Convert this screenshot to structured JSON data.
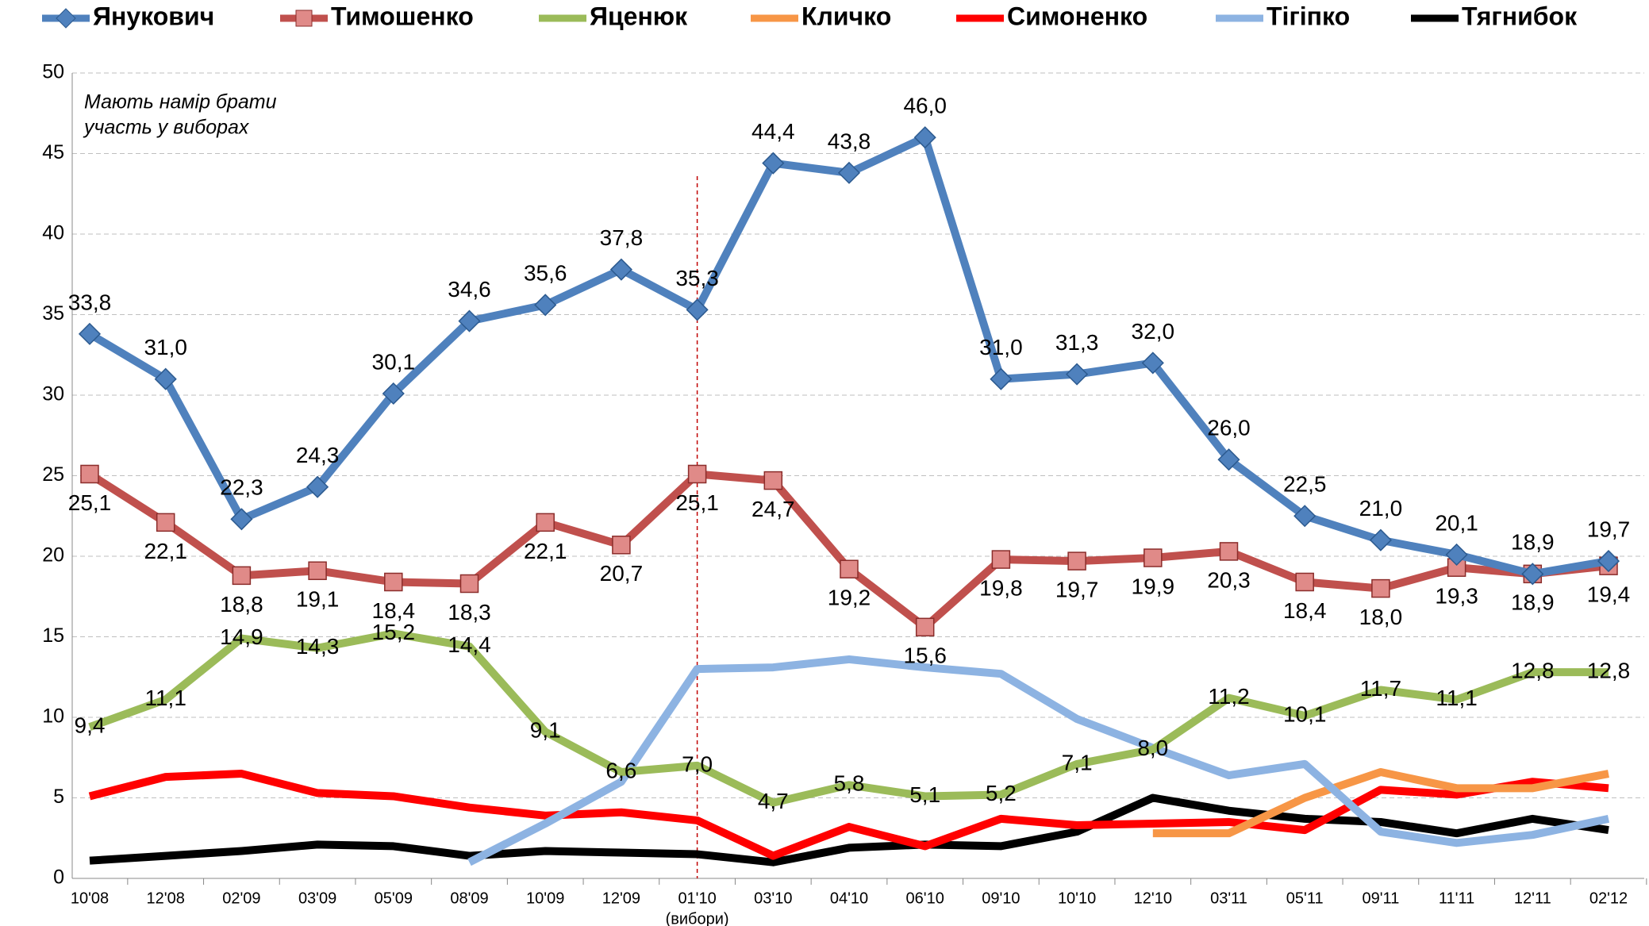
{
  "chart_data": {
    "type": "line",
    "annotation": [
      "Мають намір брати",
      "участь у виборах"
    ],
    "categories": [
      "10'08",
      "12'08",
      "02'09",
      "03'09",
      "05'09",
      "08'09",
      "10'09",
      "12'09",
      "01'10",
      "03'10",
      "04'10",
      "06'10",
      "09'10",
      "10'10",
      "12'10",
      "03'11",
      "05'11",
      "09'11",
      "11'11",
      "12'11",
      "02'12"
    ],
    "category_note": {
      "index": 8,
      "label": "(вибори)"
    },
    "ylim": [
      0,
      50
    ],
    "yticks": [
      0,
      5,
      10,
      15,
      20,
      25,
      30,
      35,
      40,
      45,
      50
    ],
    "grid": true,
    "series": [
      {
        "name": "Янукович",
        "color": "#4f81bd",
        "marker": "diamond",
        "values": [
          33.8,
          31.0,
          22.3,
          24.3,
          30.1,
          34.6,
          35.6,
          37.8,
          35.3,
          44.4,
          43.8,
          46.0,
          31.0,
          31.3,
          32.0,
          26.0,
          22.5,
          21.0,
          20.1,
          18.9,
          19.7
        ],
        "value_labels": [
          "33,8",
          "31,0",
          "22,3",
          "24,3",
          "30,1",
          "34,6",
          "35,6",
          "37,8",
          "35,3",
          "44,4",
          "43,8",
          "46,0",
          "31,0",
          "31,3",
          "32,0",
          "26,0",
          "22,5",
          "21,0",
          "20,1",
          "18,9",
          "19,7"
        ]
      },
      {
        "name": "Тимошенко",
        "color": "#c0504d",
        "marker": "square",
        "values": [
          25.1,
          22.1,
          18.8,
          19.1,
          18.4,
          18.3,
          22.1,
          20.7,
          25.1,
          24.7,
          19.2,
          15.6,
          19.8,
          19.7,
          19.9,
          20.3,
          18.4,
          18.0,
          19.3,
          18.9,
          19.4
        ],
        "value_labels": [
          "25,1",
          "22,1",
          "18,8",
          "19,1",
          "18,4",
          "18,3",
          "22,1",
          "20,7",
          "25,1",
          "24,7",
          "19,2",
          "15,6",
          "19,8",
          "19,7",
          "19,9",
          "20,3",
          "18,4",
          "18,0",
          "19,3",
          "18,9",
          "19,4"
        ]
      },
      {
        "name": "Яценюк",
        "color": "#9bbb59",
        "values": [
          9.4,
          11.1,
          14.9,
          14.3,
          15.2,
          14.4,
          9.1,
          6.6,
          7.0,
          4.7,
          5.8,
          5.1,
          5.2,
          7.1,
          8.0,
          11.2,
          10.1,
          11.7,
          11.1,
          12.8,
          12.8
        ],
        "value_labels": [
          "9,4",
          "11,1",
          "14,9",
          "14,3",
          "15,2",
          "14,4",
          "9,1",
          "6,6",
          "7,0",
          "4,7",
          "5,8",
          "5,1",
          "5,2",
          "7,1",
          "8,0",
          "11,2",
          "10,1",
          "11,7",
          "11,1",
          "12,8",
          "12,8"
        ]
      },
      {
        "name": "Кличко",
        "color": "#f79646",
        "values": [
          null,
          null,
          null,
          null,
          null,
          null,
          null,
          null,
          null,
          null,
          null,
          null,
          null,
          null,
          2.8,
          2.8,
          5.0,
          6.6,
          5.6,
          5.6,
          6.5
        ]
      },
      {
        "name": "Симоненко",
        "color": "#ff0000",
        "values": [
          5.1,
          6.3,
          6.5,
          5.3,
          5.1,
          4.4,
          3.9,
          4.1,
          3.6,
          1.4,
          3.2,
          2.0,
          3.7,
          3.3,
          3.4,
          3.5,
          3.0,
          5.5,
          5.2,
          6.0,
          5.6
        ]
      },
      {
        "name": "Тігіпко",
        "color": "#8db3e2",
        "values": [
          null,
          null,
          null,
          null,
          null,
          1.0,
          3.4,
          6.0,
          13.0,
          13.1,
          13.6,
          13.1,
          12.7,
          9.9,
          8.1,
          6.4,
          7.1,
          2.9,
          2.2,
          2.7,
          3.7
        ]
      },
      {
        "name": "Тягнибок",
        "color": "#000000",
        "values": [
          1.1,
          1.4,
          1.7,
          2.1,
          2.0,
          1.4,
          1.7,
          1.6,
          1.5,
          1.0,
          1.9,
          2.1,
          2.0,
          2.9,
          5.0,
          4.2,
          3.7,
          3.5,
          2.8,
          3.7,
          3.0
        ]
      }
    ]
  }
}
